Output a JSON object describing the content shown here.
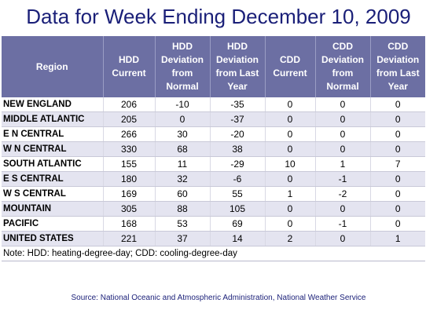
{
  "title": "Data for Week Ending December 10, 2009",
  "table": {
    "headers": [
      "Region",
      "HDD Current",
      "HDD Deviation from Normal",
      "HDD Deviation from Last Year",
      "CDD Current",
      "CDD Deviation from Normal",
      "CDD Deviation from Last Year"
    ],
    "rows": [
      [
        "NEW ENGLAND",
        "206",
        "-10",
        "-35",
        "0",
        "0",
        "0"
      ],
      [
        "MIDDLE ATLANTIC",
        "205",
        "0",
        "-37",
        "0",
        "0",
        "0"
      ],
      [
        "E N CENTRAL",
        "266",
        "30",
        "-20",
        "0",
        "0",
        "0"
      ],
      [
        "W N CENTRAL",
        "330",
        "68",
        "38",
        "0",
        "0",
        "0"
      ],
      [
        "SOUTH ATLANTIC",
        "155",
        "11",
        "-29",
        "10",
        "1",
        "7"
      ],
      [
        "E S CENTRAL",
        "180",
        "32",
        "-6",
        "0",
        "-1",
        "0"
      ],
      [
        "W S CENTRAL",
        "169",
        "60",
        "55",
        "1",
        "-2",
        "0"
      ],
      [
        "MOUNTAIN",
        "305",
        "88",
        "105",
        "0",
        "0",
        "0"
      ],
      [
        "PACIFIC",
        "168",
        "53",
        "69",
        "0",
        "-1",
        "0"
      ],
      [
        "UNITED STATES",
        "221",
        "37",
        "14",
        "2",
        "0",
        "1"
      ]
    ],
    "note": "Note: HDD: heating-degree-day; CDD: cooling-degree-day"
  },
  "source": "Source:  National Oceanic and Atmospheric Administration, National Weather Service",
  "colors": {
    "title": "#1a1f78",
    "header_bg": "#6c6fa3",
    "row_alt_bg": "#e4e4f0"
  }
}
